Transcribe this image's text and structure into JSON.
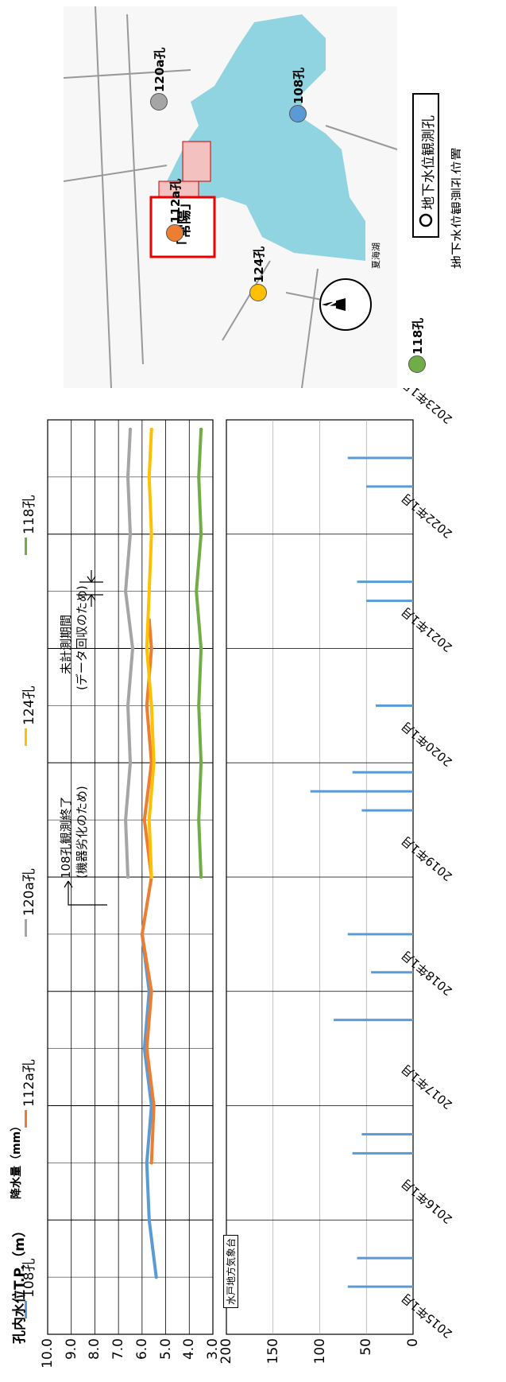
{
  "legend": [
    {
      "name": "108孔",
      "color": "#5b9bd5"
    },
    {
      "name": "112a孔",
      "color": "#ed7d31"
    },
    {
      "name": "120a孔",
      "color": "#a5a5a5"
    },
    {
      "name": "124孔",
      "color": "#ffc000"
    },
    {
      "name": "118孔",
      "color": "#70ad47"
    }
  ],
  "top_chart": {
    "ylabel": "孔内水位T.P.（m）",
    "y_ticks": [
      "10.0",
      "9.0",
      "8.0",
      "7.0",
      "6.0",
      "5.0",
      "4.0",
      "3.0"
    ],
    "annotation_108_end": "108孔観測終了",
    "annotation_108_reason": "(機器劣化のため)",
    "annotation_gap_title": "未計測期間",
    "annotation_gap_reason": "(データ回収のため)"
  },
  "bottom_chart": {
    "ylabel": "降水量（mm）",
    "y_ticks": [
      "200",
      "150",
      "100",
      "50",
      "0"
    ],
    "source_label": "水戸地方気象台"
  },
  "x_ticks": [
    "2015年1月",
    "2016年1月",
    "2017年1月",
    "2018年1月",
    "2019年1月",
    "2020年1月",
    "2021年1月",
    "2022年1月",
    "2023年1月"
  ],
  "map": {
    "caption": "地下水位観測孔位置",
    "legend_label": "地下水位観測孔",
    "facility_label": "「常陽」",
    "lake_label": "夏海湖",
    "compass_label": "N",
    "markers": [
      {
        "label": "112a孔",
        "color": "#ed7d31"
      },
      {
        "label": "124孔",
        "color": "#ffc000"
      },
      {
        "label": "118孔",
        "color": "#70ad47"
      },
      {
        "label": "108孔",
        "color": "#5b9bd5"
      },
      {
        "label": "120a孔",
        "color": "#a5a5a5"
      }
    ]
  },
  "chart_data": [
    {
      "type": "line",
      "ylabel": "孔内水位T.P.（m）",
      "ylim": [
        3.0,
        10.0
      ],
      "xlim": [
        "2015-01",
        "2023-01"
      ],
      "grid": true,
      "legend": "top",
      "series": [
        {
          "name": "108孔",
          "x": [
            "2015-07",
            "2016-01",
            "2016-07",
            "2017-01",
            "2017-07",
            "2018-01",
            "2018-07"
          ],
          "values": [
            5.4,
            5.7,
            5.8,
            5.6,
            5.9,
            5.7,
            6.0
          ]
        },
        {
          "name": "112a孔",
          "x": [
            "2016-07",
            "2017-01",
            "2017-07",
            "2018-01",
            "2018-07",
            "2019-01",
            "2019-07",
            "2020-01",
            "2020-07",
            "2021-01",
            "2021-04"
          ],
          "values": [
            5.6,
            5.5,
            5.8,
            5.6,
            6.0,
            5.6,
            5.9,
            5.6,
            5.8,
            5.6,
            5.7
          ]
        },
        {
          "name": "120a孔",
          "x": [
            "2019-01",
            "2019-07",
            "2020-01",
            "2020-07",
            "2021-01",
            "2021-07",
            "2022-01",
            "2022-07",
            "2022-12"
          ],
          "values": [
            6.6,
            6.7,
            6.5,
            6.6,
            6.4,
            6.7,
            6.5,
            6.6,
            6.5
          ]
        },
        {
          "name": "124孔",
          "x": [
            "2019-01",
            "2019-07",
            "2020-01",
            "2020-07",
            "2021-01",
            "2021-07",
            "2022-01",
            "2022-07",
            "2022-12"
          ],
          "values": [
            5.6,
            5.7,
            5.5,
            5.6,
            5.8,
            5.7,
            5.6,
            5.7,
            5.6
          ]
        },
        {
          "name": "118孔",
          "x": [
            "2019-01",
            "2019-07",
            "2020-01",
            "2020-07",
            "2021-01",
            "2021-07",
            "2022-01",
            "2022-07",
            "2022-12"
          ],
          "values": [
            3.5,
            3.6,
            3.5,
            3.6,
            3.5,
            3.7,
            3.5,
            3.6,
            3.5
          ]
        }
      ]
    },
    {
      "type": "bar",
      "ylabel": "降水量（mm）",
      "ylim": [
        0,
        200
      ],
      "xlim": [
        "2015-01",
        "2023-01"
      ],
      "grid": true,
      "x": [
        "2015-06",
        "2015-09",
        "2016-08",
        "2016-10",
        "2017-10",
        "2018-03",
        "2018-07",
        "2019-08",
        "2019-10",
        "2019-12",
        "2020-07",
        "2021-06",
        "2021-08",
        "2022-06",
        "2022-09"
      ],
      "values": [
        70,
        60,
        65,
        55,
        85,
        45,
        70,
        55,
        110,
        65,
        40,
        50,
        60,
        50,
        70
      ]
    }
  ]
}
